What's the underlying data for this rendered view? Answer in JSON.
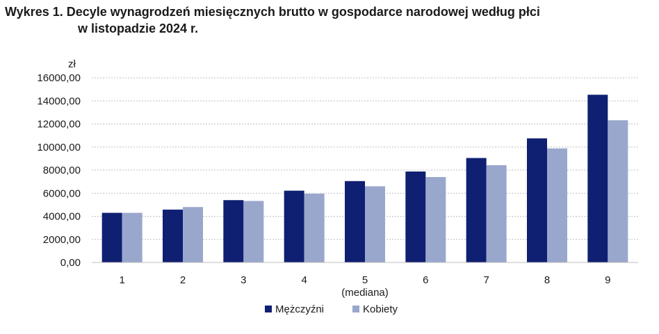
{
  "chart_data": {
    "type": "bar",
    "title_line1": "Wykres 1. Decyle wynagrodzeń miesięcznych brutto w gospodarce narodowej według płci",
    "title_line2": "w listopadzie 2024 r.",
    "ylabel": "zł",
    "xlabel": "",
    "categories": [
      "1",
      "2",
      "3",
      "4",
      "5",
      "6",
      "7",
      "8",
      "9"
    ],
    "category_note": "(mediana)",
    "series": [
      {
        "name": "Mężczyźni",
        "color": "#0f1f72",
        "values": [
          4300,
          4580,
          5400,
          6220,
          7050,
          7880,
          9050,
          10750,
          14530
        ]
      },
      {
        "name": "Kobiety",
        "color": "#9aa7cd",
        "values": [
          4300,
          4800,
          5330,
          5960,
          6600,
          7400,
          8430,
          9880,
          12320
        ]
      }
    ],
    "ylim": [
      0,
      16000
    ],
    "yticks": [
      "0,00",
      "2000,00",
      "4000,00",
      "6000,00",
      "8000,00",
      "10000,00",
      "12000,00",
      "14000,00",
      "16000,00"
    ],
    "grid": true,
    "legend_position": "bottom-center"
  }
}
